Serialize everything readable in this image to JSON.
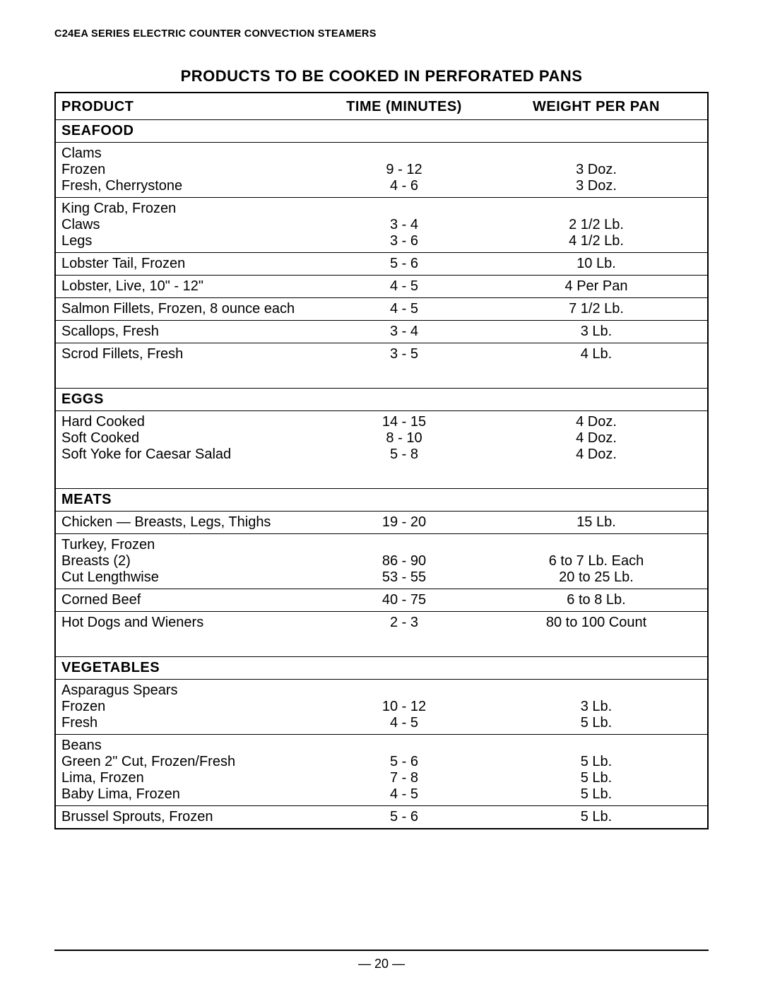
{
  "doc_header": "C24EA SERIES ELECTRIC COUNTER CONVECTION STEAMERS",
  "title": "PRODUCTS TO BE COOKED IN PERFORATED PANS",
  "columns": {
    "c1": "PRODUCT",
    "c2": "TIME (MINUTES)",
    "c3": "WEIGHT PER PAN"
  },
  "page_number": "— 20 —",
  "cat_seafood": "SEAFOOD",
  "sf_clams": {
    "label": "Clams"
  },
  "sf_clams_frozen": {
    "label": "Frozen",
    "time": "9 - 12",
    "wt": "3 Doz."
  },
  "sf_clams_fresh": {
    "label": "Fresh, Cherrystone",
    "time": "4 - 6",
    "wt": "3 Doz."
  },
  "sf_kingcrab": {
    "label": "King Crab, Frozen"
  },
  "sf_kc_claws": {
    "label": "Claws",
    "time": "3 - 4",
    "wt": "2 1/2 Lb."
  },
  "sf_kc_legs": {
    "label": "Legs",
    "time": "3 - 6",
    "wt": "4 1/2 Lb."
  },
  "sf_lobtail": {
    "label": "Lobster Tail, Frozen",
    "time": "5 - 6",
    "wt": "10 Lb."
  },
  "sf_loblive": {
    "label": "Lobster, Live, 10\" - 12\"",
    "time": "4 - 5",
    "wt": "4 Per Pan"
  },
  "sf_salmon": {
    "label": "Salmon Fillets, Frozen, 8 ounce each",
    "time": "4 - 5",
    "wt": "7 1/2 Lb."
  },
  "sf_scallops": {
    "label": "Scallops, Fresh",
    "time": "3 - 4",
    "wt": "3 Lb."
  },
  "sf_scrod": {
    "label": "Scrod Fillets, Fresh",
    "time": "3 - 5",
    "wt": "4 Lb."
  },
  "cat_eggs": "EGGS",
  "eg_hard": {
    "label": "Hard Cooked",
    "time": "14 - 15",
    "wt": "4 Doz."
  },
  "eg_soft": {
    "label": "Soft Cooked",
    "time": "8 - 10",
    "wt": "4 Doz."
  },
  "eg_caesar": {
    "label": "Soft Yoke for Caesar Salad",
    "time": "5 - 8",
    "wt": "4 Doz."
  },
  "cat_meats": "MEATS",
  "mt_chicken": {
    "label": "Chicken — Breasts, Legs, Thighs",
    "time": "19 - 20",
    "wt": "15 Lb."
  },
  "mt_turkey": {
    "label": "Turkey, Frozen"
  },
  "mt_tk_breasts": {
    "label": "Breasts (2)",
    "time": "86 - 90",
    "wt": "6 to 7 Lb. Each"
  },
  "mt_tk_cut": {
    "label": "Cut Lengthwise",
    "time": "53 - 55",
    "wt": "20 to 25 Lb."
  },
  "mt_corned": {
    "label": "Corned Beef",
    "time": "40 - 75",
    "wt": "6 to 8 Lb."
  },
  "mt_hotdogs": {
    "label": "Hot Dogs and Wieners",
    "time": "2 - 3",
    "wt": "80 to 100 Count"
  },
  "cat_veg": "VEGETABLES",
  "vg_asp": {
    "label": "Asparagus Spears"
  },
  "vg_asp_frozen": {
    "label": "Frozen",
    "time": "10 - 12",
    "wt": "3 Lb."
  },
  "vg_asp_fresh": {
    "label": "Fresh",
    "time": "4 - 5",
    "wt": "5 Lb."
  },
  "vg_beans": {
    "label": "Beans"
  },
  "vg_beans_green": {
    "label": "Green 2\" Cut, Frozen/Fresh",
    "time": "5 - 6",
    "wt": "5 Lb."
  },
  "vg_beans_lima": {
    "label": "Lima, Frozen",
    "time": "7 - 8",
    "wt": "5 Lb."
  },
  "vg_beans_baby": {
    "label": "Baby Lima, Frozen",
    "time": "4 - 5",
    "wt": "5 Lb."
  },
  "vg_brussel": {
    "label": "Brussel Sprouts, Frozen",
    "time": "5 - 6",
    "wt": "5 Lb."
  }
}
